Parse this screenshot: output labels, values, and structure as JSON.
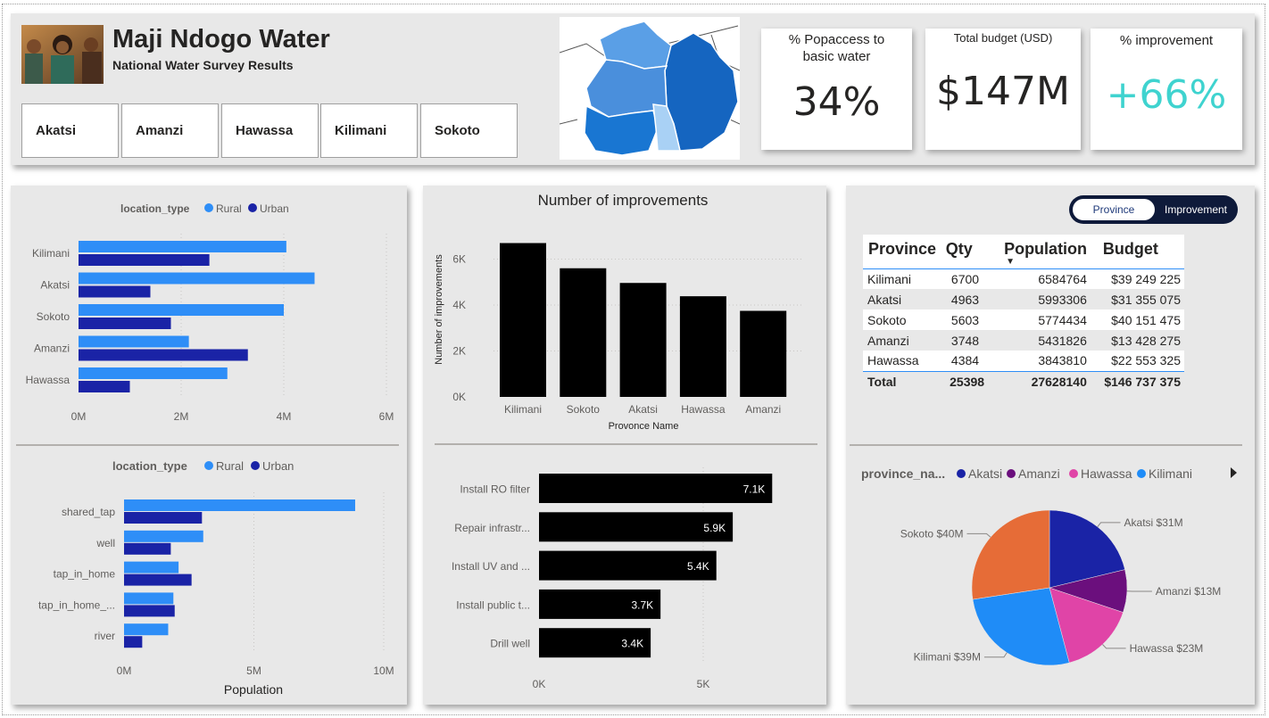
{
  "header": {
    "title": "Maji Ndogo Water",
    "subtitle": "National Water Survey Results",
    "provinces": [
      "Akatsi",
      "Amanzi",
      "Hawassa",
      "Kilimani",
      "Sokoto"
    ]
  },
  "cards": {
    "access_label": "% Popaccess to basic water",
    "access_value": "34%",
    "budget_label": "Total budget (USD)",
    "budget_value": "$147M",
    "improvement_label": "% improvement",
    "improvement_value": "+66%"
  },
  "toggle": {
    "active": "Province",
    "inactive": "Improvement"
  },
  "colors": {
    "rural": "#2e8ef7",
    "urban": "#1a23a6",
    "bar": "#000000",
    "accent": "#3fd3cf"
  },
  "chart_data": [
    {
      "type": "bar",
      "orientation": "horizontal",
      "legend_title": "location_type",
      "categories": [
        "Kilimani",
        "Akatsi",
        "Sokoto",
        "Amanzi",
        "Hawassa"
      ],
      "series": [
        {
          "name": "Rural",
          "values": [
            4.05,
            4.6,
            4.0,
            2.15,
            2.9
          ]
        },
        {
          "name": "Urban",
          "values": [
            2.55,
            1.4,
            1.8,
            3.3,
            1.0
          ]
        }
      ],
      "xticks": [
        "0M",
        "2M",
        "4M",
        "6M"
      ],
      "xlim": [
        0,
        6
      ]
    },
    {
      "type": "bar",
      "orientation": "horizontal",
      "legend_title": "location_type",
      "categories": [
        "shared_tap",
        "well",
        "tap_in_home",
        "tap_in_home_...",
        "river"
      ],
      "series": [
        {
          "name": "Rural",
          "values": [
            8.9,
            3.05,
            2.1,
            1.9,
            1.7
          ]
        },
        {
          "name": "Urban",
          "values": [
            3.0,
            1.8,
            2.6,
            1.95,
            0.7
          ]
        }
      ],
      "xticks": [
        "0M",
        "5M",
        "10M"
      ],
      "xlim": [
        0,
        10
      ],
      "xlabel": "Population"
    },
    {
      "type": "bar",
      "title": "Number of improvements",
      "categories": [
        "Kilimani",
        "Sokoto",
        "Akatsi",
        "Hawassa",
        "Amanzi"
      ],
      "values": [
        6700,
        5603,
        4963,
        4384,
        3748
      ],
      "yticks": [
        "0K",
        "2K",
        "4K",
        "6K"
      ],
      "ylim": [
        0,
        7000
      ],
      "xlabel": "Provonce Name",
      "ylabel": "Number of improvements"
    },
    {
      "type": "bar",
      "orientation": "horizontal",
      "categories": [
        "Install RO filter",
        "Repair infrastr...",
        "Install UV and ...",
        "Install public t...",
        "Drill well"
      ],
      "values": [
        7100,
        5900,
        5400,
        3700,
        3400
      ],
      "data_labels": [
        "7.1K",
        "5.9K",
        "5.4K",
        "3.7K",
        "3.4K"
      ],
      "xticks": [
        "0K",
        "5K"
      ],
      "xlim": [
        0,
        7800
      ]
    },
    {
      "type": "pie",
      "legend_title": "province_na...",
      "legend": [
        "Akatsi",
        "Amanzi",
        "Hawassa",
        "Kilimani"
      ],
      "slices": [
        {
          "name": "Akatsi",
          "value": 31,
          "label": "Akatsi $31M",
          "color": "#1a23a6"
        },
        {
          "name": "Amanzi",
          "value": 13,
          "label": "Amanzi $13M",
          "color": "#6b0f7d"
        },
        {
          "name": "Hawassa",
          "value": 23,
          "label": "Hawassa $23M",
          "color": "#e044a7"
        },
        {
          "name": "Kilimani",
          "value": 39,
          "label": "Kilimani $39M",
          "color": "#1f8cf7"
        },
        {
          "name": "Sokoto",
          "value": 40,
          "label": "Sokoto $40M",
          "color": "#e66c37"
        }
      ]
    }
  ],
  "table": {
    "headers": [
      "Province",
      "Qty",
      "Population",
      "Budget"
    ],
    "rows": [
      [
        "Kilimani",
        "6700",
        "6584764",
        "$39 249 225"
      ],
      [
        "Akatsi",
        "4963",
        "5993306",
        "$31 355 075"
      ],
      [
        "Sokoto",
        "5603",
        "5774434",
        "$40 151 475"
      ],
      [
        "Amanzi",
        "3748",
        "5431826",
        "$13 428 275"
      ],
      [
        "Hawassa",
        "4384",
        "3843810",
        "$22 553 325"
      ]
    ],
    "total": [
      "Total",
      "25398",
      "27628140",
      "$146 737 375"
    ]
  }
}
